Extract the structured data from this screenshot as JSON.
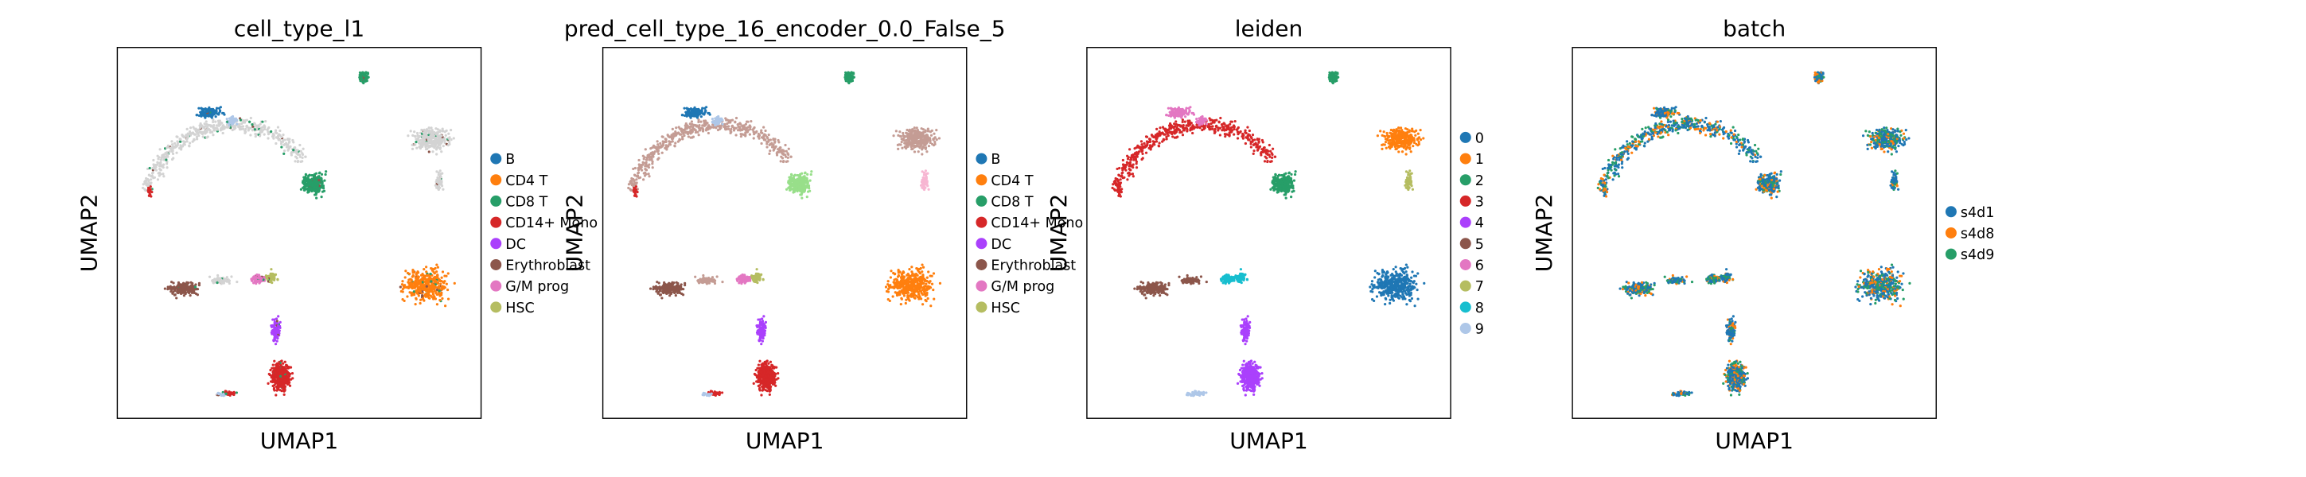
{
  "figure": {
    "background": "#ffffff"
  },
  "chart_data": [
    {
      "type": "scatter",
      "title": "cell_type_l1",
      "xlabel": "UMAP1",
      "ylabel": "UMAP2",
      "grid": false,
      "legend_placement": "right",
      "legend": [
        {
          "name": "B",
          "color": "#1f77b4"
        },
        {
          "name": "CD4 T",
          "color": "#ff7f0e"
        },
        {
          "name": "CD8 T",
          "color": "#279e68"
        },
        {
          "name": "CD14+ Mono",
          "color": "#d62728"
        },
        {
          "name": "DC",
          "color": "#aa40fc"
        },
        {
          "name": "Erythroblast",
          "color": "#8c564b"
        },
        {
          "name": "G/M prog",
          "color": "#e377c2"
        },
        {
          "name": "HSC",
          "color": "#b5bd61"
        }
      ],
      "na_color": "#d3d3d3",
      "clusters": {
        "B": "#1f77b4",
        "CD4T": "#ff7f0e",
        "CD8": "#279e68",
        "T8": "#279e68",
        "NK": "#d3d3d3",
        "NKedge": "#d3d3d3",
        "ARC": "#d3d3d3",
        "ARC_B": "#1f77b4",
        "ARC_B2": "#aec7e8",
        "ARCtip": "#d62728",
        "ERY": "#8c564b",
        "GM": "#e377c2",
        "HSC": "#b5bd61",
        "ERYmid": "#d3d3d3",
        "DC": "#aa40fc",
        "MONO": "#d62728",
        "MONOtail": "#d62728",
        "MONOtail2": "#aec7e8"
      }
    },
    {
      "type": "scatter",
      "title": "pred_cell_type_16_encoder_0.0_False_5",
      "xlabel": "UMAP1",
      "ylabel": "UMAP2",
      "grid": false,
      "legend_placement": "right",
      "legend": [
        {
          "name": "B",
          "color": "#1f77b4"
        },
        {
          "name": "CD4 T",
          "color": "#ff7f0e"
        },
        {
          "name": "CD8 T",
          "color": "#279e68"
        },
        {
          "name": "CD14+ Mono",
          "color": "#d62728"
        },
        {
          "name": "DC",
          "color": "#aa40fc"
        },
        {
          "name": "Erythroblast",
          "color": "#8c564b"
        },
        {
          "name": "G/M prog",
          "color": "#e377c2"
        },
        {
          "name": "HSC",
          "color": "#b5bd61"
        }
      ],
      "clusters": {
        "B": "#1f77b4",
        "CD4T": "#ff7f0e",
        "CD8": "#279e68",
        "T8": "#98df8a",
        "NK": "#c49c94",
        "NKedge": "#f7b6d2",
        "ARC": "#c49c94",
        "ARC_B": "#1f77b4",
        "ARC_B2": "#aec7e8",
        "ARCtip": "#d62728",
        "ERY": "#8c564b",
        "GM": "#e377c2",
        "HSC": "#b5bd61",
        "ERYmid": "#c49c94",
        "DC": "#aa40fc",
        "MONO": "#d62728",
        "MONOtail": "#d62728",
        "MONOtail2": "#aec7e8"
      }
    },
    {
      "type": "scatter",
      "title": "leiden",
      "xlabel": "UMAP1",
      "ylabel": "UMAP2",
      "grid": false,
      "legend_placement": "right",
      "legend": [
        {
          "name": "0",
          "color": "#1f77b4"
        },
        {
          "name": "1",
          "color": "#ff7f0e"
        },
        {
          "name": "2",
          "color": "#279e68"
        },
        {
          "name": "3",
          "color": "#d62728"
        },
        {
          "name": "4",
          "color": "#aa40fc"
        },
        {
          "name": "5",
          "color": "#8c564b"
        },
        {
          "name": "6",
          "color": "#e377c2"
        },
        {
          "name": "7",
          "color": "#b5bd61"
        },
        {
          "name": "8",
          "color": "#17becf"
        },
        {
          "name": "9",
          "color": "#aec7e8"
        }
      ],
      "clusters": {
        "B": "#b5bd61",
        "CD4T": "#1f77b4",
        "CD8": "#279e68",
        "T8": "#279e68",
        "NK": "#ff7f0e",
        "NKedge": "#b5bd61",
        "ARC": "#d62728",
        "ARC_B": "#e377c2",
        "ARC_B2": "#e377c2",
        "ARCtip": "#d62728",
        "ERY": "#8c564b",
        "GM": "#17becf",
        "HSC": "#17becf",
        "ERYmid": "#8c564b",
        "DC": "#aa40fc",
        "MONO": "#aa40fc",
        "MONOtail": "#aec7e8",
        "MONOtail2": "#aec7e8"
      }
    },
    {
      "type": "scatter",
      "title": "batch",
      "xlabel": "UMAP1",
      "ylabel": "UMAP2",
      "grid": false,
      "legend_placement": "right",
      "legend": [
        {
          "name": "s4d1",
          "color": "#1f77b4"
        },
        {
          "name": "s4d8",
          "color": "#ff7f0e"
        },
        {
          "name": "s4d9",
          "color": "#279e68"
        }
      ],
      "batch_mix": true
    }
  ]
}
